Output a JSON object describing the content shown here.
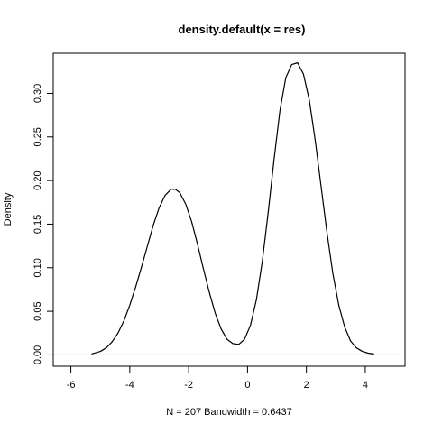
{
  "chart_data": {
    "type": "line",
    "title": "density.default(x = res)",
    "xlabel": "N = 207   Bandwidth = 0.6437",
    "ylabel": "Density",
    "xlim": [
      -6.6,
      5.35
    ],
    "ylim": [
      -0.013,
      0.346
    ],
    "xticks": [
      -6,
      -4,
      -2,
      0,
      2,
      4
    ],
    "xtick_labels": [
      "-6",
      "-4",
      "-2",
      "0",
      "2",
      "4"
    ],
    "yticks": [
      0.0,
      0.05,
      0.1,
      0.15,
      0.2,
      0.25,
      0.3
    ],
    "ytick_labels": [
      "0.00",
      "0.05",
      "0.10",
      "0.15",
      "0.20",
      "0.25",
      "0.30"
    ],
    "grid": false,
    "baseline": 0,
    "baseline_color": "#bebebe",
    "line_color": "#000000",
    "series": [
      {
        "x": [
          -5.3,
          -5.0,
          -4.8,
          -4.6,
          -4.4,
          -4.2,
          -4.0,
          -3.8,
          -3.6,
          -3.4,
          -3.2,
          -3.0,
          -2.8,
          -2.6,
          -2.45,
          -2.3,
          -2.1,
          -1.9,
          -1.7,
          -1.5,
          -1.3,
          -1.1,
          -0.9,
          -0.7,
          -0.5,
          -0.3,
          -0.1,
          0.1,
          0.3,
          0.5,
          0.7,
          0.9,
          1.1,
          1.3,
          1.5,
          1.7,
          1.9,
          2.1,
          2.3,
          2.5,
          2.7,
          2.9,
          3.1,
          3.3,
          3.5,
          3.7,
          3.9,
          4.1,
          4.3
        ],
        "y": [
          0.001,
          0.004,
          0.008,
          0.015,
          0.025,
          0.039,
          0.057,
          0.078,
          0.101,
          0.125,
          0.149,
          0.169,
          0.183,
          0.19,
          0.19,
          0.186,
          0.173,
          0.153,
          0.127,
          0.099,
          0.072,
          0.048,
          0.03,
          0.018,
          0.013,
          0.012,
          0.018,
          0.034,
          0.063,
          0.107,
          0.163,
          0.224,
          0.28,
          0.318,
          0.333,
          0.335,
          0.322,
          0.292,
          0.246,
          0.193,
          0.14,
          0.093,
          0.057,
          0.032,
          0.016,
          0.008,
          0.004,
          0.002,
          0.001
        ]
      }
    ]
  }
}
